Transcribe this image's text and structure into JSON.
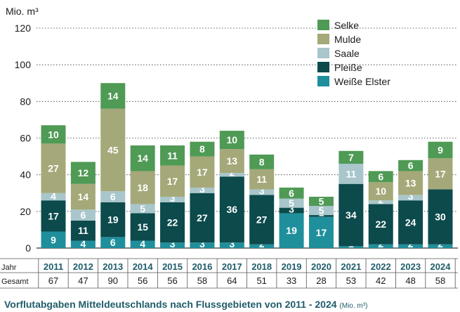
{
  "chart_data": {
    "type": "bar",
    "stacked": true,
    "ylabel": "Mio. m³",
    "ylim": [
      0,
      120
    ],
    "yticks": [
      0,
      20,
      40,
      60,
      80,
      100,
      120
    ],
    "categories": [
      "2011",
      "2012",
      "2013",
      "2014",
      "2015",
      "2016",
      "2017",
      "2018",
      "2019",
      "2020",
      "2021",
      "2022",
      "2023",
      "2024"
    ],
    "series": [
      {
        "name": "Weiße Elster",
        "color": "#1f8f9c",
        "values": [
          9,
          4,
          6,
          4,
          3,
          3,
          3,
          2,
          19,
          17,
          1,
          2,
          2,
          2
        ]
      },
      {
        "name": "Pleiße",
        "color": "#0c4a4c",
        "values": [
          17,
          11,
          19,
          15,
          22,
          27,
          36,
          27,
          3,
          1,
          34,
          22,
          24,
          30
        ]
      },
      {
        "name": "Saale",
        "color": "#a8c6cb",
        "values": [
          4,
          6,
          6,
          5,
          3,
          3,
          2,
          3,
          5,
          5,
          11,
          2,
          3,
          0
        ]
      },
      {
        "name": "Mulde",
        "color": "#a5a878",
        "values": [
          27,
          14,
          45,
          18,
          17,
          17,
          13,
          11,
          0,
          0,
          0,
          10,
          13,
          17
        ]
      },
      {
        "name": "Selke",
        "color": "#4f9a55",
        "values": [
          10,
          12,
          14,
          14,
          11,
          8,
          10,
          8,
          6,
          5,
          7,
          6,
          6,
          9
        ]
      }
    ],
    "legend_order": [
      "Selke",
      "Mulde",
      "Saale",
      "Pleiße",
      "Weiße Elster"
    ],
    "table": {
      "row_label_year": "Jahr",
      "row_label_total": "Gesamt",
      "totals": [
        67,
        47,
        90,
        56,
        56,
        58,
        64,
        51,
        33,
        28,
        53,
        42,
        48,
        58
      ]
    },
    "title": "Vorflutabgaben Mitteldeutschlands nach Flussgebieten von 2011 - 2024",
    "title_unit": "(Mio. m³)"
  }
}
